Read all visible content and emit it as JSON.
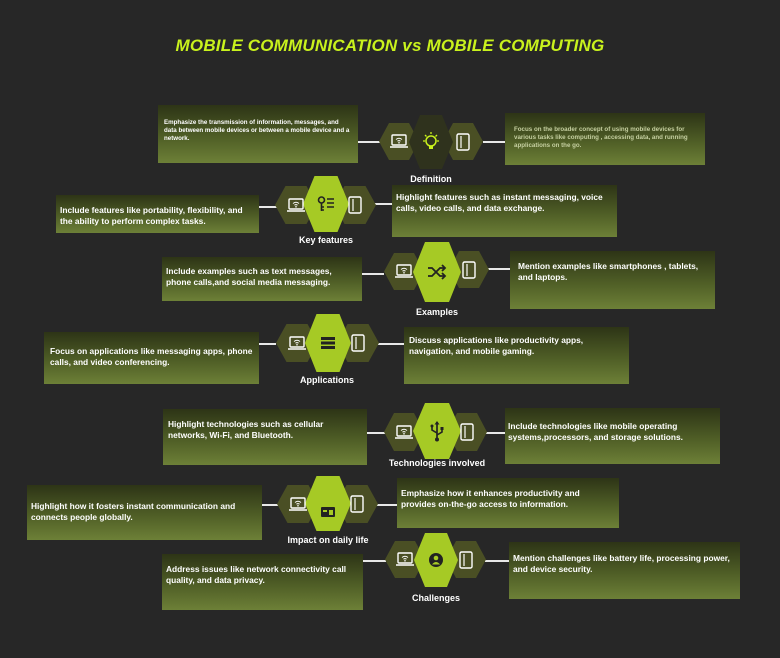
{
  "title": "MOBILE COMMUNICATION vs MOBILE COMPUTING",
  "colors": {
    "accent": "#c9f21d",
    "hex_center": "#a6ca25",
    "hex_side": "#4a4f24",
    "background": "#272727"
  },
  "rows": [
    {
      "label": "Definition",
      "icon": "lightbulb-icon",
      "left": "Emphasize the transmission of information, messages, and data between mobile devices or between a mobile device and a network.",
      "right": "Focus on the broader concept of using  mobile devices for various tasks like computing , accessing data, and running applications on the go."
    },
    {
      "label": "Key features",
      "icon": "key-list-icon",
      "left": "Include features like portability, flexibility, and the ability to perform complex tasks.",
      "right": "Highlight features such as instant messaging, voice calls, video calls, and data exchange."
    },
    {
      "label": "Examples",
      "icon": "shuffle-icon",
      "left": "Include examples such as text messages, phone calls,and social media messaging.",
      "right": "Mention examples like smartphones , tablets, and laptops."
    },
    {
      "label": "Applications",
      "icon": "menu-icon",
      "left": "Focus on applications like messaging apps, phone calls, and video conferencing.",
      "right": "Discuss applications like productivity apps, navigation, and mobile gaming."
    },
    {
      "label": "Technologies involved",
      "icon": "usb-icon",
      "left": "Highlight technologies such as cellular networks, Wi-Fi, and Bluetooth.",
      "right": "Include technologies like mobile operating systems,processors, and storage solutions."
    },
    {
      "label": "Impact on daily life",
      "icon": "browser-window-icon",
      "left": "Highlight how it fosters instant communication and connects people globally.",
      "right": "Emphasize how it enhances productivity and provides on-the-go access to information."
    },
    {
      "label": "Challenges",
      "icon": "person-circle-icon",
      "left": "Address issues like network connectivity call quality, and data privacy.",
      "right": "Mention challenges like battery life, processing power, and device security."
    }
  ],
  "left_icon": "laptop-wifi-icon",
  "right_icon": "tablet-icon"
}
